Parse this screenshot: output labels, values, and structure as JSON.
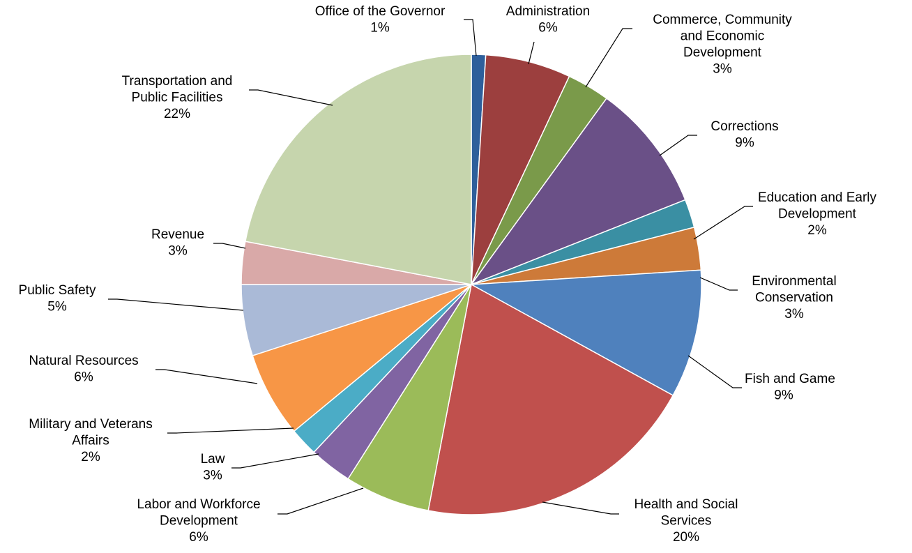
{
  "chart_data": {
    "type": "pie",
    "start_angle_deg": 0,
    "direction": "clockwise",
    "slices": [
      {
        "label": "Office of the Governor",
        "value": 1,
        "label_text": "1%",
        "color": "#2e5f9b"
      },
      {
        "label": "Administration",
        "value": 6,
        "label_text": "6%",
        "color": "#9c3f3e"
      },
      {
        "label": "Commerce, Community and Economic Development",
        "value": 3,
        "label_text": "3%",
        "color": "#7a9a4a"
      },
      {
        "label": "Corrections",
        "value": 9,
        "label_text": "9%",
        "color": "#6a5087"
      },
      {
        "label": "Education and Early Development",
        "value": 2,
        "label_text": "2%",
        "color": "#3a8fa3"
      },
      {
        "label": "Environmental Conservation",
        "value": 3,
        "label_text": "3%",
        "color": "#cd7a39"
      },
      {
        "label": "Fish and Game",
        "value": 9,
        "label_text": "9%",
        "color": "#4f81bd"
      },
      {
        "label": "Health and Social Services",
        "value": 20,
        "label_text": "20%",
        "color": "#c0504d"
      },
      {
        "label": "Labor and Workforce Development",
        "value": 6,
        "label_text": "6%",
        "color": "#9bbb59"
      },
      {
        "label": "Law",
        "value": 3,
        "label_text": "3%",
        "color": "#8064a2"
      },
      {
        "label": "Military and Veterans Affairs",
        "value": 2,
        "label_text": "2%",
        "color": "#4bacc6"
      },
      {
        "label": "Natural Resources",
        "value": 6,
        "label_text": "6%",
        "color": "#f79646"
      },
      {
        "label": "Public Safety",
        "value": 5,
        "label_text": "5%",
        "color": "#aabad7"
      },
      {
        "label": "Revenue",
        "value": 3,
        "label_text": "3%",
        "color": "#d9a9a8"
      },
      {
        "label": "Transportation and Public Facilities",
        "value": 22,
        "label_text": "22%",
        "color": "#c6d5ad"
      }
    ]
  }
}
